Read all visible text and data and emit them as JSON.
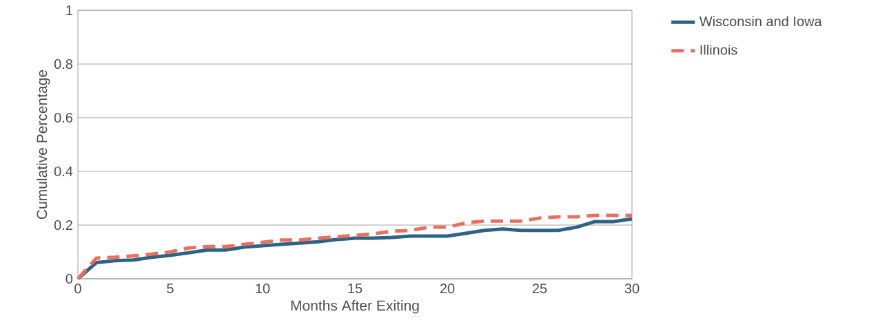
{
  "chart_data": {
    "type": "line",
    "xlabel": "Months After Exiting",
    "ylabel": "Cumulative Percentage",
    "x": [
      0,
      1,
      2,
      3,
      4,
      5,
      6,
      7,
      8,
      9,
      10,
      11,
      12,
      13,
      14,
      15,
      16,
      17,
      18,
      19,
      20,
      21,
      22,
      23,
      24,
      25,
      26,
      27,
      28,
      29,
      30
    ],
    "series": [
      {
        "name": "Wisconsin and Iowa",
        "color": "#2e6385",
        "line_style": "solid",
        "values": [
          0,
          0.06,
          0.067,
          0.07,
          0.08,
          0.087,
          0.097,
          0.107,
          0.107,
          0.118,
          0.123,
          0.128,
          0.133,
          0.138,
          0.146,
          0.151,
          0.151,
          0.154,
          0.159,
          0.159,
          0.159,
          0.169,
          0.18,
          0.185,
          0.18,
          0.18,
          0.18,
          0.192,
          0.213,
          0.213,
          0.223
        ]
      },
      {
        "name": "Illinois",
        "color": "#e8705e",
        "line_style": "dashed",
        "values": [
          0,
          0.077,
          0.08,
          0.085,
          0.092,
          0.1,
          0.115,
          0.12,
          0.12,
          0.128,
          0.136,
          0.144,
          0.144,
          0.151,
          0.156,
          0.162,
          0.167,
          0.177,
          0.18,
          0.192,
          0.192,
          0.208,
          0.215,
          0.215,
          0.215,
          0.226,
          0.231,
          0.231,
          0.236,
          0.236,
          0.236
        ]
      }
    ],
    "xlim": [
      0,
      30
    ],
    "xticks": [
      0,
      5,
      10,
      15,
      20,
      25,
      30
    ],
    "ylim": [
      0,
      1
    ],
    "yticks": [
      0,
      0.2,
      0.4,
      0.6,
      0.8,
      1
    ],
    "grid": "y",
    "legend": "top right",
    "marker": "none"
  }
}
